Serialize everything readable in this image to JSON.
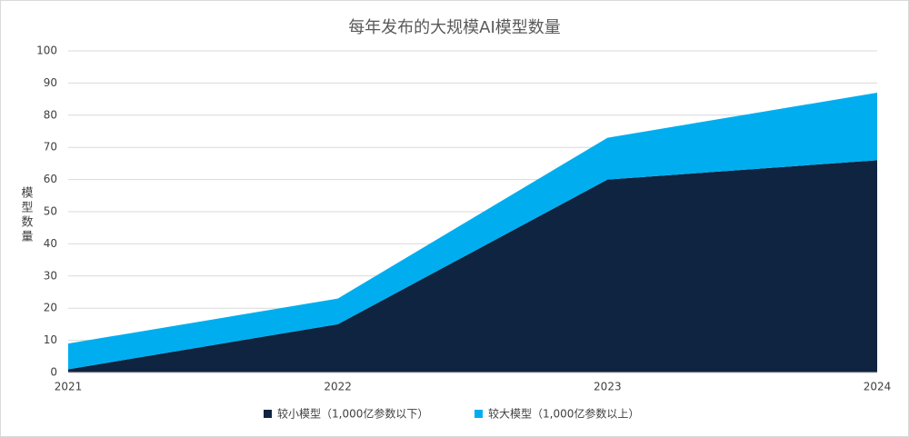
{
  "chart_data": {
    "type": "stacked_area",
    "title": "每年发布的大规模AI模型数量",
    "y_label": "模型数量",
    "categories": [
      "2021",
      "2022",
      "2023",
      "2024"
    ],
    "series": [
      {
        "name": "较小模型（1,000亿参数以下）",
        "color": "#0e2440",
        "values": [
          1,
          15,
          60,
          66
        ]
      },
      {
        "name": "较大模型（1,000亿参数以上）",
        "color": "#00aeef",
        "values": [
          8,
          8,
          13,
          21
        ]
      }
    ],
    "ylim": [
      0,
      100
    ],
    "yticks": [
      0,
      10,
      20,
      30,
      40,
      50,
      60,
      70,
      80,
      90,
      100
    ],
    "grid": true,
    "legend": "bottom"
  }
}
